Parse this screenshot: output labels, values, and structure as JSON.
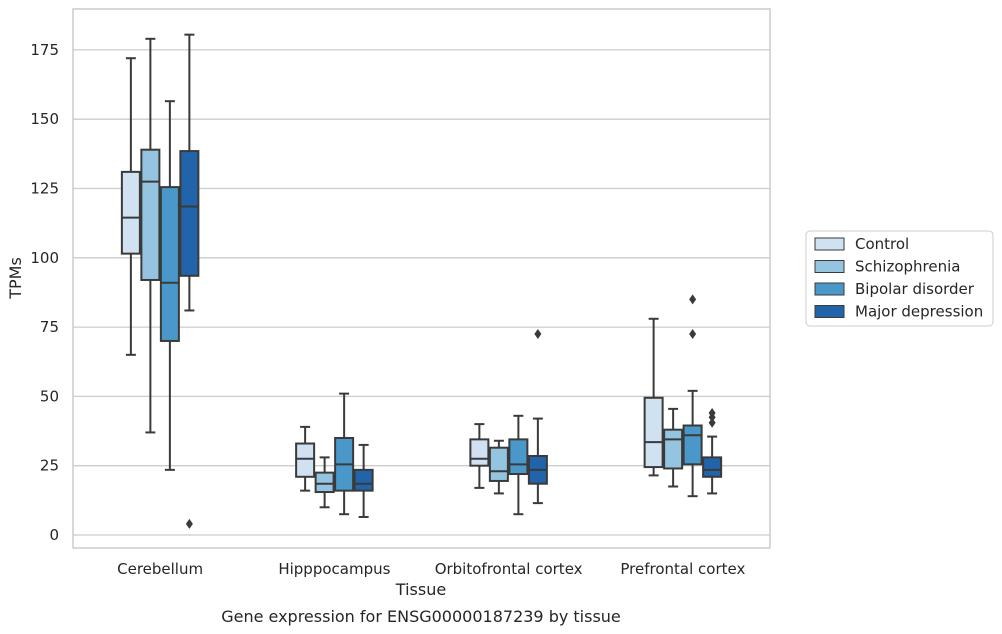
{
  "chart_data": {
    "type": "box",
    "title": "",
    "caption": "Gene expression for ENSG00000187239 by tissue",
    "xlabel": "Tissue",
    "ylabel": "TPMs",
    "categories": [
      "Cerebellum",
      "Hipppocampus",
      "Orbitofrontal cortex",
      "Prefrontal cortex"
    ],
    "ylim": [
      -4,
      190
    ],
    "yticks": [
      0,
      25,
      50,
      75,
      100,
      125,
      150,
      175
    ],
    "grid": true,
    "legend_position": "right",
    "series": [
      {
        "name": "Control",
        "color": "#d0e1f2",
        "boxes": [
          {
            "whisker_low": 65,
            "q1": 101.5,
            "median": 114.5,
            "q3": 131,
            "whisker_high": 172,
            "outliers": []
          },
          {
            "whisker_low": 16,
            "q1": 21,
            "median": 27.5,
            "q3": 33,
            "whisker_high": 39,
            "outliers": []
          },
          {
            "whisker_low": 17,
            "q1": 25,
            "median": 27.5,
            "q3": 34.5,
            "whisker_high": 40,
            "outliers": []
          },
          {
            "whisker_low": 21.5,
            "q1": 24.5,
            "median": 33.5,
            "q3": 49.5,
            "whisker_high": 78,
            "outliers": []
          }
        ]
      },
      {
        "name": "Schizophrenia",
        "color": "#94c4df",
        "boxes": [
          {
            "whisker_low": 37,
            "q1": 92,
            "median": 127.5,
            "q3": 139,
            "whisker_high": 179,
            "outliers": []
          },
          {
            "whisker_low": 10,
            "q1": 15.5,
            "median": 18.5,
            "q3": 22.5,
            "whisker_high": 28,
            "outliers": []
          },
          {
            "whisker_low": 15,
            "q1": 19.5,
            "median": 23,
            "q3": 31.5,
            "whisker_high": 34,
            "outliers": []
          },
          {
            "whisker_low": 17.5,
            "q1": 24,
            "median": 34.5,
            "q3": 38,
            "whisker_high": 45.5,
            "outliers": []
          }
        ]
      },
      {
        "name": "Bipolar disorder",
        "color": "#4a98c9",
        "boxes": [
          {
            "whisker_low": 23.5,
            "q1": 70,
            "median": 91,
            "q3": 125.5,
            "whisker_high": 156.5,
            "outliers": []
          },
          {
            "whisker_low": 7.5,
            "q1": 16,
            "median": 25.5,
            "q3": 35,
            "whisker_high": 51,
            "outliers": []
          },
          {
            "whisker_low": 7.5,
            "q1": 22,
            "median": 25.5,
            "q3": 34.5,
            "whisker_high": 43,
            "outliers": []
          },
          {
            "whisker_low": 14,
            "q1": 25.5,
            "median": 36,
            "q3": 39.5,
            "whisker_high": 52,
            "outliers": [
              72.5,
              85
            ]
          }
        ]
      },
      {
        "name": "Major depression",
        "color": "#2264a9",
        "boxes": [
          {
            "whisker_low": 81,
            "q1": 93.5,
            "median": 118.5,
            "q3": 138.5,
            "whisker_high": 180.5,
            "outliers": [
              4
            ]
          },
          {
            "whisker_low": 6.5,
            "q1": 16,
            "median": 18.5,
            "q3": 23.5,
            "whisker_high": 32.5,
            "outliers": []
          },
          {
            "whisker_low": 11.5,
            "q1": 18.5,
            "median": 23.5,
            "q3": 28.5,
            "whisker_high": 42,
            "outliers": [
              72.5
            ]
          },
          {
            "whisker_low": 15,
            "q1": 21,
            "median": 23.5,
            "q3": 28,
            "whisker_high": 35.5,
            "outliers": [
              40.5,
              42.5,
              44
            ]
          }
        ]
      }
    ]
  }
}
